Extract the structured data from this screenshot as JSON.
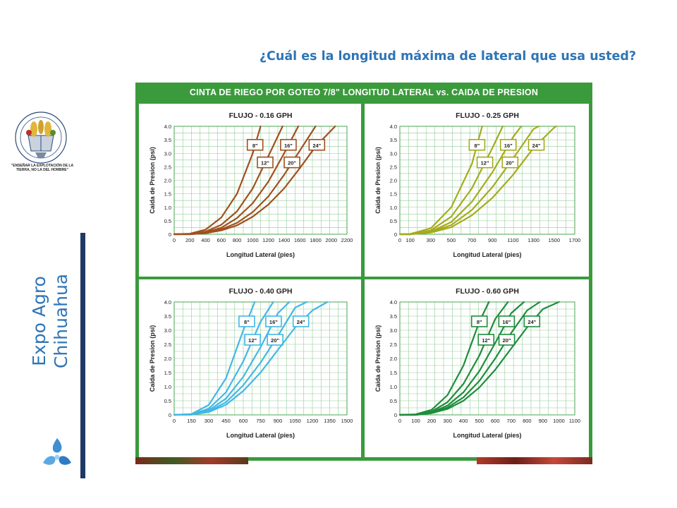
{
  "slide": {
    "question": "¿Cuál es la longitud máxima de lateral que usa usted?",
    "side_title_line1": "Expo Agro",
    "side_title_line2": "Chihuahua",
    "logo_motto": "\"ENSEÑAR LA EXPLOTACIÓN DE LA TIERRA, NO LA DEL HOMBRE\"",
    "logo_ring_text": "Universidad Autónoma Chapingo"
  },
  "figure": {
    "title": "CINTA DE RIEGO POR GOTEO 7/8\" LONGITUD LATERAL  vs. CAIDA DE PRESION",
    "frame_color": "#3a9a3c"
  },
  "chart_data": [
    {
      "type": "line",
      "title": "FLUJO - 0.16 GPH",
      "xlabel": "Longitud Lateral (pies)",
      "ylabel": "Caida de Presion (psi)",
      "xlim": [
        0,
        2200
      ],
      "ylim": [
        0,
        4.0
      ],
      "xticks": [
        "0",
        "200",
        "400",
        "600",
        "800",
        "1000",
        "1200",
        "1400",
        "1600",
        "1800",
        "2000",
        "2200"
      ],
      "yticks": [
        "0",
        "0.5",
        "1.0",
        "1.5",
        "2.0",
        "2.5",
        "3.0",
        "3.5",
        "4.0"
      ],
      "color": "#a0501e",
      "grid": true,
      "series": [
        {
          "name": "8\"",
          "x": [
            0,
            200,
            400,
            600,
            800,
            1000,
            1100
          ],
          "y": [
            0,
            0.02,
            0.17,
            0.62,
            1.5,
            3.0,
            4.0
          ]
        },
        {
          "name": "12\"",
          "x": [
            0,
            200,
            400,
            600,
            800,
            1000,
            1200,
            1380
          ],
          "y": [
            0,
            0.01,
            0.1,
            0.35,
            0.85,
            1.7,
            2.9,
            4.0
          ]
        },
        {
          "name": "16\"",
          "x": [
            0,
            200,
            400,
            600,
            800,
            1000,
            1200,
            1400,
            1580
          ],
          "y": [
            0,
            0.01,
            0.07,
            0.24,
            0.6,
            1.15,
            1.95,
            3.0,
            4.0
          ]
        },
        {
          "name": "20\"",
          "x": [
            0,
            200,
            400,
            600,
            800,
            1000,
            1200,
            1400,
            1600,
            1800
          ],
          "y": [
            0,
            0,
            0.05,
            0.18,
            0.42,
            0.82,
            1.4,
            2.2,
            3.1,
            4.0
          ]
        },
        {
          "name": "24\"",
          "x": [
            0,
            200,
            400,
            600,
            800,
            1000,
            1200,
            1400,
            1600,
            1800,
            2050
          ],
          "y": [
            0,
            0,
            0.04,
            0.14,
            0.33,
            0.65,
            1.1,
            1.7,
            2.45,
            3.25,
            4.0
          ]
        }
      ]
    },
    {
      "type": "line",
      "title": "FLUJO - 0.25 GPH",
      "xlabel": "Longitud Lateral (pies)",
      "ylabel": "Caida de Presion (psi)",
      "xlim": [
        0,
        1700
      ],
      "ylim": [
        0,
        4.0
      ],
      "xticks": [
        "0",
        "100",
        "300",
        "500",
        "700",
        "900",
        "1100",
        "1300",
        "1500",
        "1700"
      ],
      "xtick_values": [
        0,
        100,
        300,
        500,
        700,
        900,
        1100,
        1300,
        1500,
        1700
      ],
      "yticks": [
        "0",
        "0.5",
        "1.0",
        "1.5",
        "2.0",
        "2.5",
        "3.0",
        "3.5",
        "4.0"
      ],
      "color": "#a5ab1c",
      "grid": true,
      "series": [
        {
          "name": "8\"",
          "x": [
            0,
            100,
            300,
            500,
            700,
            800
          ],
          "y": [
            0,
            0.01,
            0.22,
            1.0,
            2.6,
            4.0
          ]
        },
        {
          "name": "12\"",
          "x": [
            0,
            100,
            300,
            500,
            700,
            900,
            1000
          ],
          "y": [
            0,
            0,
            0.14,
            0.65,
            1.7,
            3.2,
            4.0
          ]
        },
        {
          "name": "16\"",
          "x": [
            0,
            100,
            300,
            500,
            700,
            900,
            1100,
            1180
          ],
          "y": [
            0,
            0,
            0.1,
            0.45,
            1.2,
            2.3,
            3.6,
            4.0
          ]
        },
        {
          "name": "20\"",
          "x": [
            0,
            100,
            300,
            500,
            700,
            900,
            1100,
            1300,
            1350
          ],
          "y": [
            0,
            0,
            0.08,
            0.34,
            0.9,
            1.75,
            2.8,
            3.9,
            4.0
          ]
        },
        {
          "name": "24\"",
          "x": [
            0,
            100,
            300,
            500,
            700,
            900,
            1100,
            1300,
            1500,
            1520
          ],
          "y": [
            0,
            0,
            0.06,
            0.26,
            0.7,
            1.35,
            2.2,
            3.2,
            3.95,
            4.0
          ]
        }
      ]
    },
    {
      "type": "line",
      "title": "FLUJO - 0.40 GPH",
      "xlabel": "Longitud Lateral (pies)",
      "ylabel": "Caida de Presion (psi)",
      "xlim": [
        0,
        1500
      ],
      "ylim": [
        0,
        4.0
      ],
      "xticks": [
        "0",
        "150",
        "300",
        "450",
        "600",
        "750",
        "900",
        "1050",
        "1200",
        "1350",
        "1500"
      ],
      "yticks": [
        "0",
        "0.5",
        "1.0",
        "1.5",
        "2.0",
        "2.5",
        "3.0",
        "3.5",
        "4.0"
      ],
      "color": "#43b7e6",
      "grid": true,
      "series": [
        {
          "name": "8\"",
          "x": [
            0,
            150,
            300,
            450,
            600,
            700
          ],
          "y": [
            0,
            0.03,
            0.35,
            1.3,
            3.0,
            4.0
          ]
        },
        {
          "name": "12\"",
          "x": [
            0,
            150,
            300,
            450,
            600,
            750,
            860
          ],
          "y": [
            0,
            0.02,
            0.22,
            0.8,
            1.9,
            3.3,
            4.0
          ]
        },
        {
          "name": "16\"",
          "x": [
            0,
            150,
            300,
            450,
            600,
            750,
            900,
            1000
          ],
          "y": [
            0,
            0.01,
            0.16,
            0.58,
            1.35,
            2.4,
            3.6,
            4.0
          ]
        },
        {
          "name": "20\"",
          "x": [
            0,
            150,
            300,
            450,
            600,
            750,
            900,
            1050,
            1150
          ],
          "y": [
            0,
            0.01,
            0.12,
            0.45,
            1.05,
            1.85,
            2.8,
            3.8,
            4.0
          ]
        },
        {
          "name": "24\"",
          "x": [
            0,
            150,
            300,
            450,
            600,
            750,
            900,
            1050,
            1200,
            1330
          ],
          "y": [
            0,
            0.01,
            0.1,
            0.36,
            0.85,
            1.5,
            2.3,
            3.1,
            3.7,
            4.0
          ]
        }
      ]
    },
    {
      "type": "line",
      "title": "FLUJO - 0.60 GPH",
      "xlabel": "Longitud Lateral (pies)",
      "ylabel": "Caida de Presion (psi)",
      "xlim": [
        0,
        1100
      ],
      "ylim": [
        0,
        4.0
      ],
      "xticks": [
        "0",
        "100",
        "200",
        "300",
        "400",
        "500",
        "600",
        "700",
        "800",
        "900",
        "1000",
        "1100"
      ],
      "yticks": [
        "0",
        "0.5",
        "1.0",
        "1.5",
        "2.0",
        "2.5",
        "3.0",
        "3.5",
        "4.0"
      ],
      "color": "#1f8c3c",
      "grid": true,
      "series": [
        {
          "name": "8\"",
          "x": [
            0,
            100,
            200,
            300,
            400,
            500,
            560
          ],
          "y": [
            0,
            0.02,
            0.18,
            0.7,
            1.75,
            3.3,
            4.0
          ]
        },
        {
          "name": "12\"",
          "x": [
            0,
            100,
            200,
            300,
            400,
            500,
            600,
            680
          ],
          "y": [
            0,
            0.01,
            0.12,
            0.45,
            1.1,
            2.1,
            3.4,
            4.0
          ]
        },
        {
          "name": "16\"",
          "x": [
            0,
            100,
            200,
            300,
            400,
            500,
            600,
            700,
            780
          ],
          "y": [
            0,
            0.01,
            0.09,
            0.33,
            0.8,
            1.55,
            2.55,
            3.6,
            4.0
          ]
        },
        {
          "name": "20\"",
          "x": [
            0,
            100,
            200,
            300,
            400,
            500,
            600,
            700,
            800,
            880
          ],
          "y": [
            0,
            0,
            0.07,
            0.26,
            0.62,
            1.2,
            2.0,
            2.9,
            3.7,
            4.0
          ]
        },
        {
          "name": "24\"",
          "x": [
            0,
            100,
            200,
            300,
            400,
            500,
            600,
            700,
            800,
            900,
            1000
          ],
          "y": [
            0,
            0,
            0.06,
            0.21,
            0.5,
            0.97,
            1.6,
            2.35,
            3.1,
            3.75,
            4.0
          ]
        }
      ]
    }
  ]
}
